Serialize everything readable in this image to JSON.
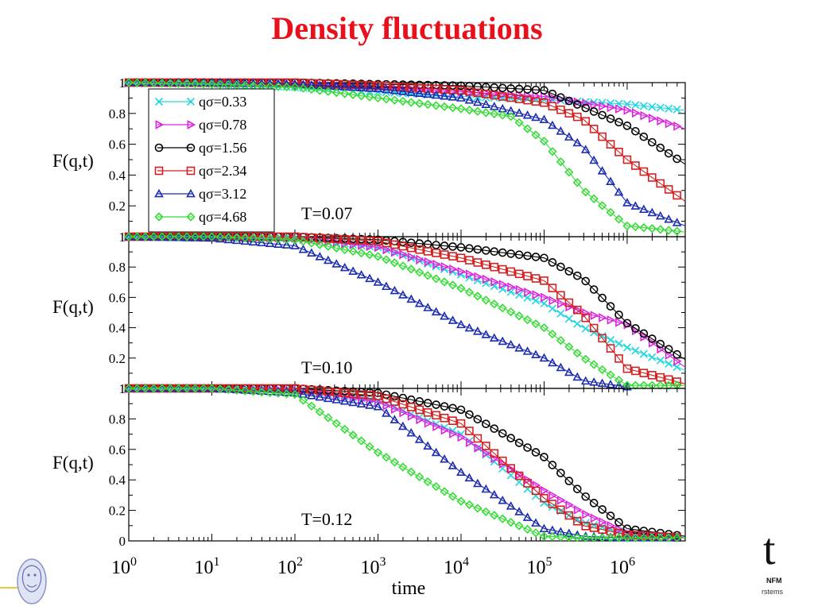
{
  "slide": {
    "title": "Density fluctuations",
    "logo_left": "lion-crest-icon",
    "logo_right": {
      "glyph": "t",
      "line1": "NFM",
      "line2": "rstems"
    }
  },
  "chart_data": {
    "type": "line",
    "xlabel": "time",
    "x_scale": "log",
    "xlim": [
      1,
      5000000
    ],
    "x_ticks": [
      "10^0",
      "10^1",
      "10^2",
      "10^3",
      "10^4",
      "10^5",
      "10^6"
    ],
    "series_style": [
      {
        "name": "qσ=0.33",
        "color": "#22d6e0",
        "marker": "x"
      },
      {
        "name": "qσ=0.78",
        "color": "#dd22dd",
        "marker": "triangle-right"
      },
      {
        "name": "qσ=1.56",
        "color": "#000000",
        "marker": "circle"
      },
      {
        "name": "qσ=2.34",
        "color": "#d42020",
        "marker": "square"
      },
      {
        "name": "qσ=3.12",
        "color": "#1a2bb0",
        "marker": "triangle-up"
      },
      {
        "name": "qσ=4.68",
        "color": "#33dd33",
        "marker": "diamond"
      }
    ],
    "panels": [
      {
        "label": "T=0.07",
        "ylabel": "F(q,t)",
        "ylim": [
          0,
          1
        ],
        "y_ticks": [
          "0.2",
          "0.4",
          "0.6",
          "0.8",
          "1"
        ],
        "series": [
          {
            "name": "qσ=0.33",
            "x": [
              1,
              10,
              100,
              1000,
              10000,
              100000,
              1000000,
              5000000
            ],
            "y": [
              1.0,
              0.99,
              0.97,
              0.94,
              0.91,
              0.89,
              0.86,
              0.82
            ]
          },
          {
            "name": "qσ=0.78",
            "x": [
              1,
              10,
              100,
              1000,
              10000,
              100000,
              1000000,
              5000000
            ],
            "y": [
              1.0,
              1.0,
              0.99,
              0.97,
              0.94,
              0.91,
              0.82,
              0.7
            ]
          },
          {
            "name": "qσ=1.56",
            "x": [
              1,
              10,
              100,
              1000,
              10000,
              100000,
              1000000,
              5000000
            ],
            "y": [
              1.0,
              1.0,
              1.0,
              0.99,
              0.98,
              0.95,
              0.72,
              0.47
            ]
          },
          {
            "name": "qσ=2.34",
            "x": [
              1,
              10,
              100,
              1000,
              10000,
              100000,
              300000,
              1000000,
              5000000
            ],
            "y": [
              1.0,
              1.0,
              1.0,
              0.98,
              0.95,
              0.87,
              0.76,
              0.5,
              0.23
            ]
          },
          {
            "name": "qσ=3.12",
            "x": [
              1,
              10,
              100,
              1000,
              10000,
              100000,
              300000,
              1000000,
              5000000
            ],
            "y": [
              1.0,
              1.0,
              0.99,
              0.96,
              0.9,
              0.76,
              0.58,
              0.22,
              0.07
            ]
          },
          {
            "name": "qσ=4.68",
            "x": [
              1,
              10,
              100,
              1000,
              10000,
              40000,
              100000,
              300000,
              1000000,
              5000000
            ],
            "y": [
              1.0,
              0.99,
              0.97,
              0.9,
              0.83,
              0.78,
              0.62,
              0.3,
              0.07,
              0.03
            ]
          }
        ]
      },
      {
        "label": "T=0.10",
        "ylabel": "F(q,t)",
        "ylim": [
          0,
          1
        ],
        "y_ticks": [
          "0.2",
          "0.4",
          "0.6",
          "0.8",
          "1"
        ],
        "series": [
          {
            "name": "qσ=0.33",
            "x": [
              1,
              10,
              100,
              1000,
              10000,
              100000,
              300000,
              1000000,
              5000000
            ],
            "y": [
              1.0,
              1.0,
              0.99,
              0.93,
              0.75,
              0.56,
              0.4,
              0.27,
              0.12
            ]
          },
          {
            "name": "qσ=0.78",
            "x": [
              1,
              10,
              100,
              1000,
              10000,
              100000,
              300000,
              1000000,
              5000000
            ],
            "y": [
              1.0,
              1.0,
              0.99,
              0.93,
              0.77,
              0.6,
              0.5,
              0.42,
              0.14
            ]
          },
          {
            "name": "qσ=1.56",
            "x": [
              1,
              10,
              100,
              1000,
              10000,
              100000,
              300000,
              1000000,
              5000000
            ],
            "y": [
              1.0,
              1.0,
              1.0,
              0.98,
              0.93,
              0.86,
              0.72,
              0.43,
              0.19
            ]
          },
          {
            "name": "qσ=2.34",
            "x": [
              1,
              10,
              100,
              1000,
              10000,
              100000,
              300000,
              1000000,
              5000000
            ],
            "y": [
              1.0,
              1.0,
              1.0,
              0.97,
              0.86,
              0.71,
              0.48,
              0.13,
              0.03
            ]
          },
          {
            "name": "qσ=3.12",
            "x": [
              1,
              10,
              100,
              1000,
              10000,
              100000,
              300000,
              1000000
            ],
            "y": [
              1.0,
              0.99,
              0.94,
              0.7,
              0.42,
              0.2,
              0.05,
              0.01
            ]
          },
          {
            "name": "qσ=4.68",
            "x": [
              1,
              10,
              100,
              1000,
              10000,
              100000,
              300000,
              1000000,
              5000000
            ],
            "y": [
              1.0,
              1.0,
              0.98,
              0.87,
              0.66,
              0.4,
              0.2,
              0.02,
              0.02
            ]
          }
        ]
      },
      {
        "label": "T=0.12",
        "ylabel": "F(q,t)",
        "ylim": [
          0,
          1
        ],
        "y_ticks": [
          "0",
          "0.2",
          "0.4",
          "0.6",
          "0.8",
          "1"
        ],
        "series": [
          {
            "name": "qσ=0.33",
            "x": [
              1,
              10,
              100,
              1000,
              10000,
              100000,
              300000,
              1000000,
              5000000
            ],
            "y": [
              1.0,
              1.0,
              0.99,
              0.92,
              0.7,
              0.25,
              0.12,
              0.05,
              0.03
            ]
          },
          {
            "name": "qσ=0.78",
            "x": [
              1,
              10,
              100,
              1000,
              10000,
              100000,
              300000,
              1000000,
              5000000
            ],
            "y": [
              1.0,
              1.0,
              0.99,
              0.91,
              0.68,
              0.33,
              0.18,
              0.05,
              0.02
            ]
          },
          {
            "name": "qσ=1.56",
            "x": [
              1,
              10,
              100,
              1000,
              10000,
              100000,
              300000,
              1000000,
              5000000
            ],
            "y": [
              1.0,
              1.0,
              1.0,
              0.97,
              0.86,
              0.55,
              0.3,
              0.08,
              0.03
            ]
          },
          {
            "name": "qσ=2.34",
            "x": [
              1,
              10,
              100,
              1000,
              10000,
              100000,
              300000,
              1000000,
              5000000
            ],
            "y": [
              1.0,
              1.0,
              1.0,
              0.95,
              0.77,
              0.28,
              0.1,
              0.04,
              0.02
            ]
          },
          {
            "name": "qσ=3.12",
            "x": [
              1,
              10,
              100,
              1000,
              10000,
              100000,
              300000,
              1000000,
              5000000
            ],
            "y": [
              1.0,
              1.0,
              0.97,
              0.88,
              0.45,
              0.08,
              0.03,
              0.02,
              0.02
            ]
          },
          {
            "name": "qσ=4.68",
            "x": [
              1,
              10,
              100,
              1000,
              10000,
              100000,
              300000,
              1000000,
              5000000
            ],
            "y": [
              1.0,
              1.0,
              0.96,
              0.58,
              0.26,
              0.03,
              0.02,
              0.02,
              0.02
            ]
          }
        ]
      }
    ]
  }
}
